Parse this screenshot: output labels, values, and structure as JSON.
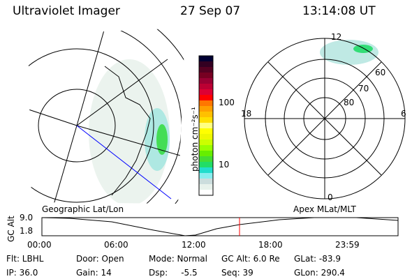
{
  "header": {
    "instrument": "Ultraviolet Imager",
    "date": "27 Sep 07",
    "time": "13:14:08 UT"
  },
  "colorbar": {
    "label": "photon cm⁻²s⁻¹",
    "ticks": [
      "100",
      "10"
    ],
    "colors": [
      "#000033",
      "#330022",
      "#550022",
      "#770022",
      "#990033",
      "#bb0033",
      "#dd0033",
      "#ff0000",
      "#ff7700",
      "#ffa000",
      "#ffc000",
      "#ffe000",
      "#ffff80",
      "#ffff00",
      "#eef800",
      "#ccff00",
      "#99ff00",
      "#66ee00",
      "#44dd33",
      "#22dd66",
      "#22ddcc",
      "#88eeee",
      "#ccdddd",
      "#e8f2ec",
      "#ffffff"
    ]
  },
  "polar": {
    "labels": {
      "top": "12",
      "bottom": "0",
      "left": "18",
      "right": "6"
    },
    "rings": [
      "60",
      "70",
      "80"
    ]
  },
  "panels": {
    "left_label": "Geographic Lat/Lon",
    "right_label": "Apex MLat/MLT"
  },
  "altplot": {
    "ylabel": "GC Alt",
    "yticks": [
      "9.0",
      "1.8"
    ],
    "xticks": [
      "00:00",
      "06:00",
      "12:00",
      "18:00",
      "23:59"
    ],
    "marker_color": "#ff0000"
  },
  "info": {
    "filter": "Flt: LBHL",
    "ip": "IP: 36.0",
    "door": "Door: Open",
    "gain": "Gain: 14",
    "mode": "Mode: Normal",
    "dsp": "Dsp:     -5.5",
    "gcalt": "GC Alt: 6.0 Re",
    "seq": "Seq: 39",
    "glat": "GLat: -83.9",
    "glon": "GLon: 290.4"
  }
}
